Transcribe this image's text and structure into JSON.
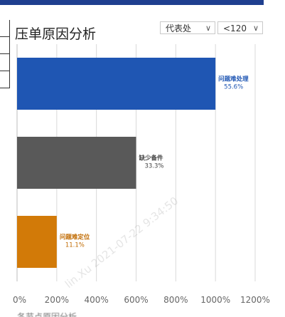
{
  "header": {
    "title": "压单原因分析",
    "filter_region": "代表处",
    "filter_range": "<120"
  },
  "watermark": "lin.Xu 2021-07-22 9:34:50",
  "footer_label": "各节点原因分析",
  "colors": {
    "bar_blue": "#1f56b3",
    "bar_gray": "#595959",
    "bar_orange": "#d27a08",
    "grid": "#d9d9d9",
    "top_strip": "#1f3f8f"
  },
  "chart_data": {
    "type": "bar",
    "orientation": "horizontal",
    "categories": [
      "问题难处理",
      "缺少备件",
      "问题难定位"
    ],
    "values": [
      1000,
      600,
      200
    ],
    "data_labels": [
      "55.6%",
      "33.3%",
      "11.1%"
    ],
    "x_ticks": [
      "0%",
      "200%",
      "400%",
      "600%",
      "800%",
      "1000%",
      "1200%"
    ],
    "xlim": [
      0,
      1200
    ],
    "grid": true,
    "colors": [
      "#1f56b3",
      "#595959",
      "#d27a08"
    ],
    "label_colors": [
      "#1f56b3",
      "#444444",
      "#c06a00"
    ]
  }
}
